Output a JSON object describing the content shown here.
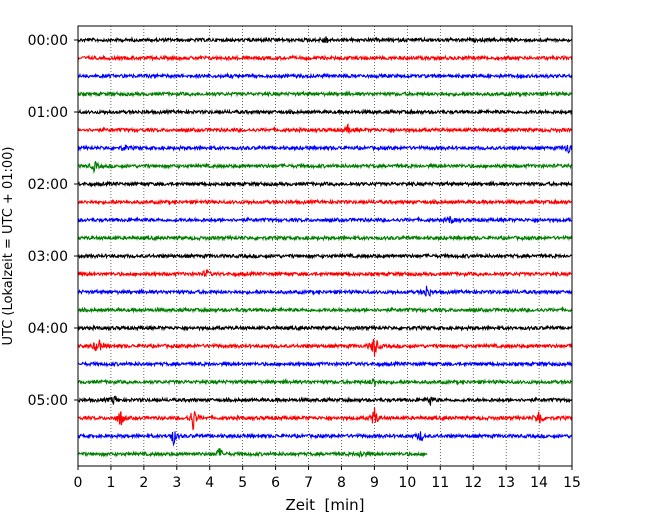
{
  "chart_data": {
    "type": "line",
    "title": "",
    "xlabel": "Zeit  [min]",
    "ylabel": "UTC (Lokalzeit = UTC + 01:00)",
    "xlim": [
      0,
      15
    ],
    "x_ticks": [
      "0",
      "1",
      "2",
      "3",
      "4",
      "5",
      "6",
      "7",
      "8",
      "9",
      "10",
      "11",
      "12",
      "13",
      "14",
      "15"
    ],
    "y_tick_labels": [
      "00:00",
      "01:00",
      "02:00",
      "03:00",
      "04:00",
      "05:00"
    ],
    "grid": "vertical dotted lines at each minute",
    "trace_colors": [
      "#000000",
      "#ff0000",
      "#0000ff",
      "#008000"
    ],
    "trace_interval_minutes": 15,
    "traces": [
      {
        "start": "00:00",
        "color": "#000000",
        "end_min": 15,
        "events": [
          {
            "t": 7.5,
            "amp": 4
          }
        ]
      },
      {
        "start": "00:15",
        "color": "#ff0000",
        "end_min": 15,
        "events": []
      },
      {
        "start": "00:30",
        "color": "#0000ff",
        "end_min": 15,
        "events": []
      },
      {
        "start": "00:45",
        "color": "#008000",
        "end_min": 15,
        "events": []
      },
      {
        "start": "01:00",
        "color": "#000000",
        "end_min": 15,
        "events": []
      },
      {
        "start": "01:15",
        "color": "#ff0000",
        "end_min": 15,
        "events": [
          {
            "t": 8.2,
            "amp": 4
          }
        ]
      },
      {
        "start": "01:30",
        "color": "#0000ff",
        "end_min": 15,
        "events": [
          {
            "t": 1.4,
            "amp": 3
          },
          {
            "t": 14.9,
            "amp": 6
          }
        ]
      },
      {
        "start": "01:45",
        "color": "#008000",
        "end_min": 15,
        "events": [
          {
            "t": 0.5,
            "amp": 5
          }
        ]
      },
      {
        "start": "02:00",
        "color": "#000000",
        "end_min": 15,
        "events": []
      },
      {
        "start": "02:15",
        "color": "#ff0000",
        "end_min": 15,
        "events": []
      },
      {
        "start": "02:30",
        "color": "#0000ff",
        "end_min": 15,
        "events": [
          {
            "t": 11.3,
            "amp": 4
          }
        ]
      },
      {
        "start": "02:45",
        "color": "#008000",
        "end_min": 15,
        "events": []
      },
      {
        "start": "03:00",
        "color": "#000000",
        "end_min": 15,
        "events": []
      },
      {
        "start": "03:15",
        "color": "#ff0000",
        "end_min": 15,
        "events": [
          {
            "t": 3.9,
            "amp": 4
          }
        ]
      },
      {
        "start": "03:30",
        "color": "#0000ff",
        "end_min": 15,
        "events": [
          {
            "t": 10.6,
            "amp": 8
          }
        ]
      },
      {
        "start": "03:45",
        "color": "#008000",
        "end_min": 15,
        "events": []
      },
      {
        "start": "04:00",
        "color": "#000000",
        "end_min": 15,
        "events": []
      },
      {
        "start": "04:15",
        "color": "#ff0000",
        "end_min": 15,
        "events": [
          {
            "t": 0.6,
            "amp": 10
          },
          {
            "t": 9.0,
            "amp": 12
          }
        ]
      },
      {
        "start": "04:30",
        "color": "#0000ff",
        "end_min": 15,
        "events": []
      },
      {
        "start": "04:45",
        "color": "#008000",
        "end_min": 15,
        "events": [
          {
            "t": 9.0,
            "amp": 5
          }
        ]
      },
      {
        "start": "05:00",
        "color": "#000000",
        "end_min": 15,
        "events": [
          {
            "t": 1.1,
            "amp": 5
          },
          {
            "t": 10.7,
            "amp": 5
          }
        ]
      },
      {
        "start": "05:15",
        "color": "#ff0000",
        "end_min": 15,
        "events": [
          {
            "t": 1.3,
            "amp": 9
          },
          {
            "t": 3.5,
            "amp": 13
          },
          {
            "t": 9.0,
            "amp": 10
          },
          {
            "t": 14.0,
            "amp": 10
          }
        ]
      },
      {
        "start": "05:30",
        "color": "#0000ff",
        "end_min": 15,
        "events": [
          {
            "t": 2.9,
            "amp": 8
          },
          {
            "t": 10.4,
            "amp": 5
          }
        ]
      },
      {
        "start": "05:45",
        "color": "#008000",
        "end_min": 10.6,
        "events": [
          {
            "t": 4.3,
            "amp": 6
          },
          {
            "t": 8.6,
            "amp": 4
          }
        ]
      }
    ]
  }
}
